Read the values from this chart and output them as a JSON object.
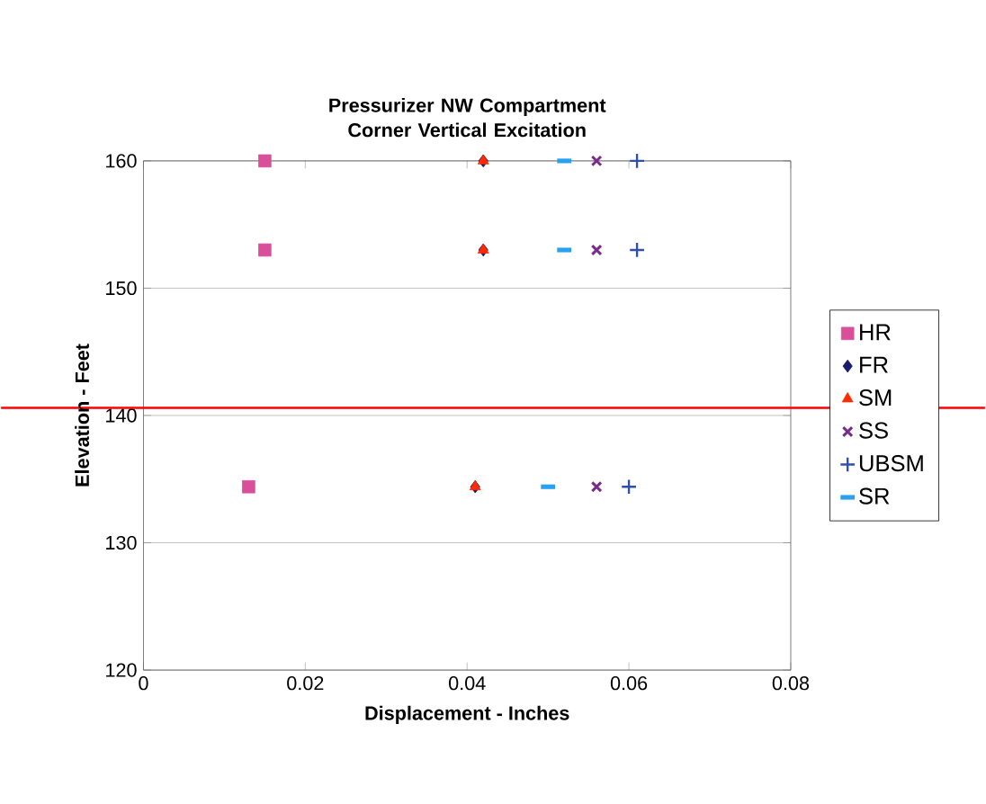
{
  "chart_data": {
    "type": "scatter",
    "title": "Pressurizer NW Compartment Corner Vertical Excitation",
    "xlabel": "Displacement - Inches",
    "ylabel": "Elevation - Feet",
    "xlim": [
      0,
      0.08
    ],
    "xticks": [
      0,
      0.02,
      0.04,
      0.06,
      0.08
    ],
    "ylim": [
      120,
      160
    ],
    "yticks": [
      120,
      130,
      140,
      150,
      160
    ],
    "grid": "y",
    "legend": "right",
    "series": [
      {
        "name": "HR",
        "color": "#d94f9a",
        "marker": "square",
        "x": [
          0.015,
          0.015,
          0.013
        ],
        "values": [
          160,
          153,
          134.4
        ]
      },
      {
        "name": "FR",
        "color": "#1a1a6e",
        "marker": "diamond",
        "x": [
          0.042,
          0.042,
          0.041
        ],
        "values": [
          160,
          153,
          134.4
        ]
      },
      {
        "name": "SM",
        "color": "#ff2a00",
        "marker": "triangle",
        "x": [
          0.042,
          0.042,
          0.041
        ],
        "values": [
          160,
          153,
          134.4
        ]
      },
      {
        "name": "SS",
        "color": "#7a2a8a",
        "marker": "cross",
        "x": [
          0.056,
          0.056,
          0.056
        ],
        "values": [
          160,
          153,
          134.4
        ]
      },
      {
        "name": "UBSM",
        "color": "#3050b0",
        "marker": "cross",
        "x": [
          0.061,
          0.061,
          0.06
        ],
        "values": [
          160,
          153,
          134.4
        ]
      },
      {
        "name": "SR",
        "color": "#2aa0f0",
        "x": [
          0.052,
          0.052,
          0.05
        ],
        "values": [
          160,
          153,
          134.4
        ]
      }
    ],
    "ref_lines": [
      {
        "axis": "y",
        "value": 140.6,
        "color": "#ff0000"
      }
    ]
  }
}
